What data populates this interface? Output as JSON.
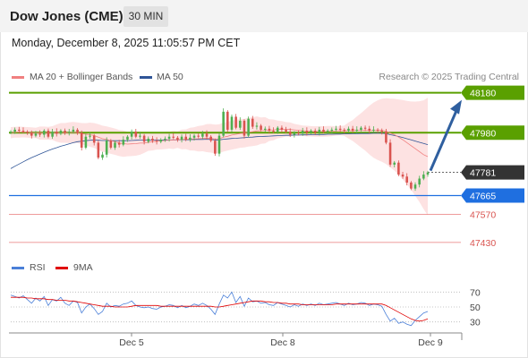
{
  "header": {
    "title": "Dow Jones (CME)",
    "timeframe": "30 MIN",
    "datetime": "Monday, December 8, 2025 11:05:57 PM CET"
  },
  "legend": {
    "ma20": {
      "label": "MA 20 + Bollinger Bands",
      "color": "#f08080"
    },
    "ma50": {
      "label": "MA 50",
      "color": "#2f5597"
    },
    "research": "Research © 2025 Trading Central"
  },
  "rsi_legend": {
    "rsi": {
      "label": "RSI",
      "color": "#4a7fd8"
    },
    "ma9": {
      "label": "9MA",
      "color": "#e00000"
    }
  },
  "chart_data": [
    {
      "type": "candlestick",
      "ylim": [
        47380,
        48210
      ],
      "x_ticks": [
        "Dec 5",
        "Dec 8",
        "Dec 9"
      ],
      "levels": [
        {
          "value": 48180,
          "label": "48180",
          "kind": "resistance",
          "color": "#5aa000"
        },
        {
          "value": 47980,
          "label": "47980",
          "kind": "resistance",
          "color": "#5aa000"
        },
        {
          "value": 47781,
          "label": "47781",
          "kind": "last",
          "color": "#333333"
        },
        {
          "value": 47665,
          "label": "47665",
          "kind": "pivot",
          "color": "#1f6fe0"
        },
        {
          "value": 47570,
          "label": "47570",
          "kind": "support",
          "color": "#d9534f"
        },
        {
          "value": 47430,
          "label": "47430",
          "kind": "support",
          "color": "#d9534f"
        }
      ],
      "close": [
        47985,
        47995,
        47990,
        47985,
        47980,
        47965,
        47975,
        47970,
        47990,
        47960,
        47985,
        47975,
        47990,
        47980,
        47985,
        47995,
        47980,
        47905,
        47960,
        47965,
        47930,
        47855,
        47870,
        47940,
        47905,
        47930,
        47920,
        47945,
        47960,
        47985,
        47960,
        47965,
        47935,
        47950,
        47940,
        47935,
        47945,
        47950,
        47960,
        47955,
        47945,
        47960,
        47945,
        47955,
        47965,
        47960,
        47975,
        47960,
        47940,
        47875,
        47965,
        48085,
        47995,
        48060,
        48005,
        48040,
        47965,
        48050,
        48010,
        48015,
        47995,
        48000,
        47990,
        47985,
        48005,
        47995,
        47985,
        47970,
        47980,
        47975,
        47990,
        47980,
        47990,
        47980,
        47995,
        47985,
        47990,
        47995,
        48000,
        47995,
        47990,
        48000,
        47990,
        47995,
        48005,
        48000,
        47990,
        47995,
        47990,
        47985,
        47930,
        47820,
        47830,
        47770,
        47760,
        47730,
        47700,
        47720,
        47750,
        47770,
        47781
      ],
      "ma20": {
        "name": "MA 20",
        "values": [
          47980,
          47982,
          47983,
          47983,
          47982,
          47980,
          47979,
          47978,
          47978,
          47977,
          47978,
          47978,
          47979,
          47979,
          47980,
          47981,
          47980,
          47975,
          47972,
          47970,
          47966,
          47958,
          47950,
          47946,
          47940,
          47935,
          47928,
          47925,
          47923,
          47924,
          47925,
          47928,
          47928,
          47932,
          47935,
          47937,
          47939,
          47941,
          47943,
          47944,
          47945,
          47946,
          47947,
          47948,
          47949,
          47950,
          47952,
          47953,
          47952,
          47948,
          47950,
          47958,
          47962,
          47968,
          47972,
          47976,
          47978,
          47982,
          47985,
          47989,
          47990,
          47992,
          47993,
          47994,
          47996,
          47997,
          47997,
          47996,
          47994,
          47992,
          47990,
          47988,
          47987,
          47986,
          47986,
          47986,
          47987,
          47988,
          47989,
          47990,
          47990,
          47991,
          47991,
          47992,
          47992,
          47993,
          47993,
          47993,
          47993,
          47992,
          47988,
          47978,
          47970,
          47958,
          47945,
          47930,
          47915,
          47900,
          47885,
          47870,
          47860
        ]
      },
      "ma50": {
        "name": "MA 50",
        "values": [
          47800,
          47812,
          47823,
          47834,
          47845,
          47855,
          47864,
          47873,
          47882,
          47890,
          47898,
          47905,
          47912,
          47918,
          47924,
          47930,
          47935,
          47937,
          47940,
          47942,
          47943,
          47942,
          47941,
          47941,
          47940,
          47940,
          47940,
          47940,
          47940,
          47941,
          47942,
          47943,
          47943,
          47943,
          47943,
          47943,
          47943,
          47944,
          47944,
          47944,
          47944,
          47945,
          47945,
          47945,
          47946,
          47946,
          47946,
          47947,
          47946,
          47944,
          47944,
          47947,
          47949,
          47951,
          47952,
          47954,
          47955,
          47957,
          47958,
          47960,
          47961,
          47962,
          47963,
          47964,
          47965,
          47966,
          47967,
          47967,
          47968,
          47968,
          47969,
          47969,
          47970,
          47970,
          47971,
          47971,
          47972,
          47972,
          47973,
          47973,
          47974,
          47974,
          47975,
          47975,
          47976,
          47976,
          47976,
          47977,
          47977,
          47977,
          47975,
          47970,
          47966,
          47961,
          47956,
          47950,
          47944,
          47938,
          47932,
          47926,
          47920
        ]
      },
      "rsi": {
        "name": "RSI",
        "ylim": [
          20,
          80
        ],
        "ticks": [
          70,
          50,
          30
        ],
        "values": [
          66,
          64,
          62,
          65,
          60,
          55,
          62,
          58,
          64,
          52,
          60,
          58,
          63,
          55,
          52,
          58,
          56,
          42,
          50,
          54,
          48,
          40,
          44,
          55,
          50,
          52,
          51,
          54,
          55,
          58,
          52,
          50,
          49,
          50,
          48,
          47,
          50,
          51,
          53,
          52,
          49,
          52,
          49,
          51,
          54,
          52,
          55,
          52,
          47,
          40,
          54,
          66,
          62,
          70,
          56,
          64,
          51,
          62,
          57,
          58,
          55,
          56,
          53,
          52,
          56,
          54,
          52,
          50,
          53,
          51,
          54,
          52,
          54,
          52,
          55,
          53,
          54,
          55,
          56,
          54,
          52,
          55,
          53,
          54,
          56,
          55,
          52,
          54,
          53,
          51,
          40,
          31,
          35,
          28,
          30,
          27,
          25,
          32,
          37,
          42,
          44
        ]
      },
      "rsi_ma9": {
        "name": "9MA",
        "values": [
          63,
          63,
          63,
          63,
          62,
          62,
          61,
          61,
          61,
          60,
          60,
          59,
          59,
          59,
          58,
          58,
          57,
          56,
          55,
          54,
          53,
          52,
          51,
          51,
          51,
          50,
          50,
          50,
          50,
          51,
          52,
          52,
          52,
          52,
          52,
          52,
          51,
          51,
          51,
          51,
          51,
          51,
          51,
          51,
          51,
          51,
          51,
          51,
          51,
          50,
          50,
          51,
          52,
          53,
          54,
          55,
          56,
          57,
          58,
          58,
          58,
          57,
          57,
          56,
          56,
          55,
          55,
          54,
          54,
          54,
          53,
          53,
          53,
          53,
          53,
          53,
          53,
          53,
          54,
          54,
          54,
          54,
          54,
          54,
          54,
          54,
          54,
          54,
          54,
          54,
          52,
          49,
          46,
          43,
          40,
          37,
          34,
          32,
          31,
          32,
          34
        ]
      }
    }
  ]
}
